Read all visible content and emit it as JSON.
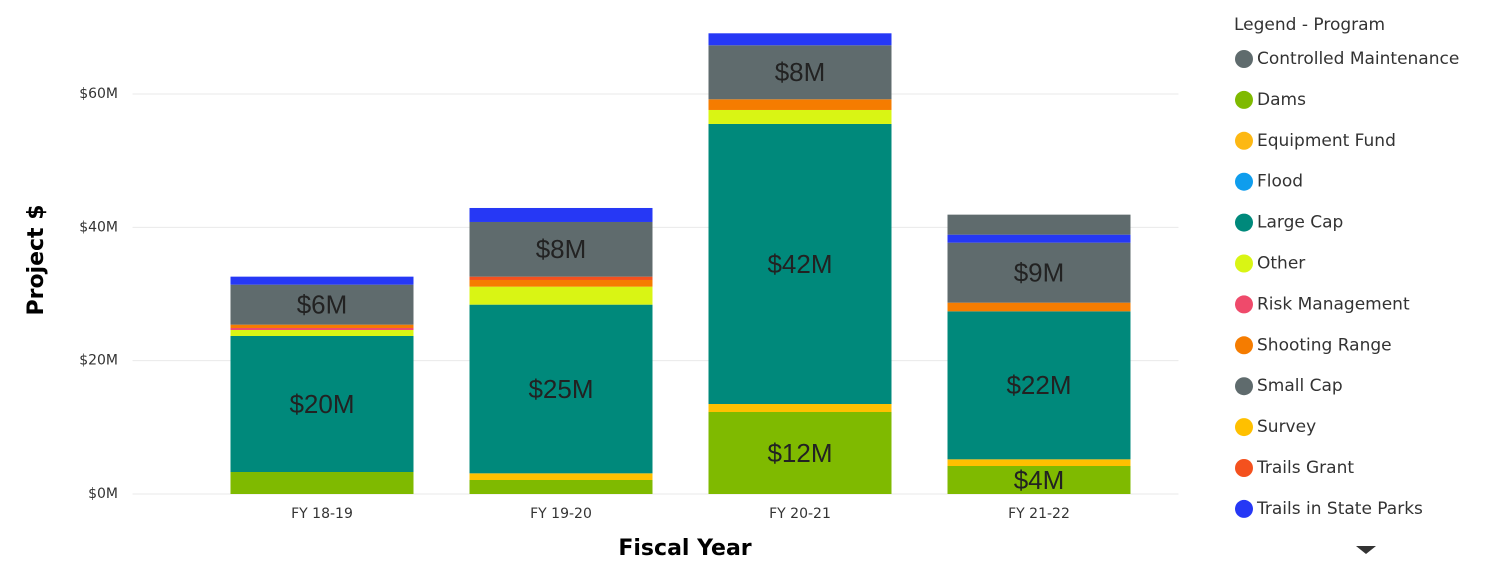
{
  "chart_data": {
    "type": "stacked_bar",
    "x_label": "Fiscal Year",
    "y_label": "Project $",
    "legend_title": "Legend - Program",
    "categories": [
      "FY 18-19",
      "FY 19-20",
      "FY 20-21",
      "FY 21-22"
    ],
    "ylim": [
      0,
      70
    ],
    "yticks": [
      {
        "value": 0,
        "label": "$0M"
      },
      {
        "value": 20,
        "label": "$20M"
      },
      {
        "value": 40,
        "label": "$40M"
      },
      {
        "value": 60,
        "label": "$60M"
      }
    ],
    "grid": true,
    "legend": "right",
    "series": [
      {
        "name": "Controlled Maintenance",
        "color": "#5f6b6d",
        "values": [
          0,
          0,
          0,
          3.0
        ]
      },
      {
        "name": "Dams",
        "color": "#7fba00",
        "values": [
          3.3,
          2.1,
          12.3,
          4.2
        ],
        "value_labels": [
          null,
          null,
          "$12M",
          "$4M"
        ]
      },
      {
        "name": "Equipment Fund",
        "color": "#fdb813",
        "values": [
          0,
          0,
          0,
          0
        ]
      },
      {
        "name": "Flood",
        "color": "#0f9ded",
        "values": [
          0,
          0,
          0,
          0
        ]
      },
      {
        "name": "Large Cap",
        "color": "#00897b",
        "values": [
          20.4,
          25.3,
          42.0,
          22.2
        ],
        "value_labels": [
          "$20M",
          "$25M",
          "$42M",
          "$22M"
        ]
      },
      {
        "name": "Other",
        "color": "#d9f514",
        "values": [
          0.9,
          2.7,
          2.1,
          0
        ]
      },
      {
        "name": "Risk Management",
        "color": "#ef4a6b",
        "values": [
          0.3,
          0,
          0,
          0
        ]
      },
      {
        "name": "Shooting Range",
        "color": "#f57c00",
        "values": [
          0.5,
          1.0,
          1.6,
          1.3
        ]
      },
      {
        "name": "Small Cap",
        "color": "#5f6b6d",
        "values": [
          6.0,
          8.2,
          8.1,
          9.0
        ],
        "value_labels": [
          "$6M",
          "$8M",
          "$8M",
          "$9M"
        ]
      },
      {
        "name": "Survey",
        "color": "#ffc000",
        "values": [
          0,
          1.0,
          1.2,
          1.0
        ]
      },
      {
        "name": "Trails Grant",
        "color": "#f4511e",
        "values": [
          0,
          0.5,
          0,
          0
        ]
      },
      {
        "name": "Trails in State Parks",
        "color": "#2638f5",
        "values": [
          1.2,
          2.1,
          1.8,
          1.2
        ]
      }
    ]
  }
}
